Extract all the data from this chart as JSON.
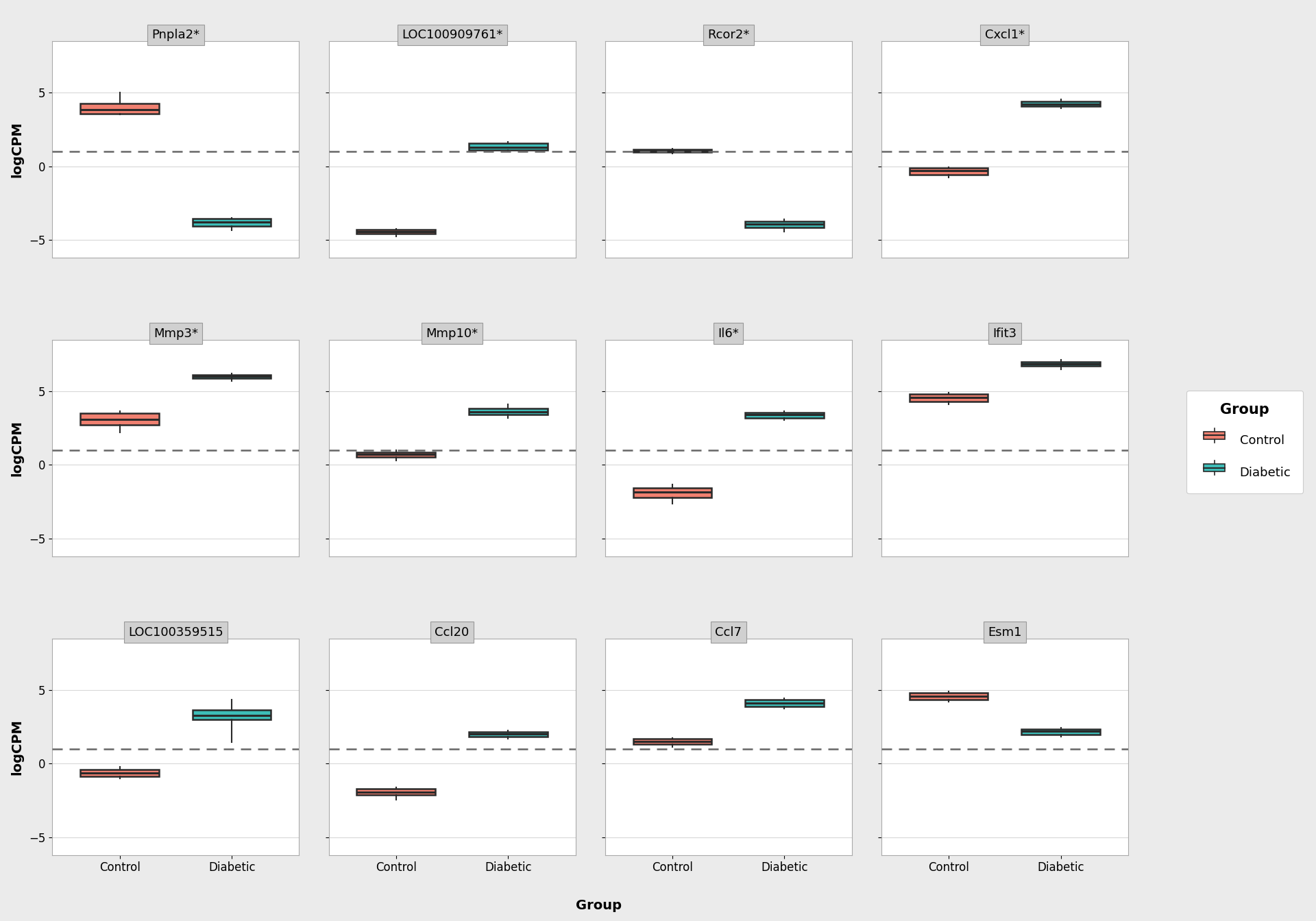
{
  "panels": [
    {
      "title": "Pnpla2*",
      "row": 0,
      "col": 0,
      "control": {
        "q1": 3.55,
        "median": 3.85,
        "q3": 4.25,
        "whislo": 3.5,
        "whishi": 5.0
      },
      "diabetic": {
        "q1": -4.05,
        "median": -3.8,
        "q3": -3.55,
        "whislo": -4.35,
        "whishi": -3.5
      }
    },
    {
      "title": "LOC100909761*",
      "row": 0,
      "col": 1,
      "control": {
        "q1": -4.6,
        "median": -4.45,
        "q3": -4.3,
        "whislo": -4.75,
        "whishi": -4.25
      },
      "diabetic": {
        "q1": 1.1,
        "median": 1.3,
        "q3": 1.55,
        "whislo": 1.05,
        "whishi": 1.65
      }
    },
    {
      "title": "Rcor2*",
      "row": 0,
      "col": 2,
      "control": {
        "q1": 0.95,
        "median": 1.05,
        "q3": 1.15,
        "whislo": 0.88,
        "whishi": 1.2
      },
      "diabetic": {
        "q1": -4.15,
        "median": -3.95,
        "q3": -3.75,
        "whislo": -4.45,
        "whishi": -3.6
      }
    },
    {
      "title": "Cxcl1*",
      "row": 0,
      "col": 3,
      "control": {
        "q1": -0.6,
        "median": -0.32,
        "q3": -0.12,
        "whislo": -0.78,
        "whishi": -0.05
      },
      "diabetic": {
        "q1": 4.05,
        "median": 4.22,
        "q3": 4.38,
        "whislo": 3.95,
        "whishi": 4.52
      }
    },
    {
      "title": "Mmp3*",
      "row": 1,
      "col": 0,
      "control": {
        "q1": 2.7,
        "median": 3.1,
        "q3": 3.5,
        "whislo": 2.2,
        "whishi": 3.65
      },
      "diabetic": {
        "q1": 5.88,
        "median": 6.0,
        "q3": 6.12,
        "whislo": 5.7,
        "whishi": 6.2
      }
    },
    {
      "title": "Mmp10*",
      "row": 1,
      "col": 1,
      "control": {
        "q1": 0.55,
        "median": 0.72,
        "q3": 0.88,
        "whislo": 0.3,
        "whishi": 0.98
      },
      "diabetic": {
        "q1": 3.4,
        "median": 3.6,
        "q3": 3.85,
        "whislo": 3.2,
        "whishi": 4.1
      }
    },
    {
      "title": "Il6*",
      "row": 1,
      "col": 2,
      "control": {
        "q1": -2.2,
        "median": -1.85,
        "q3": -1.55,
        "whislo": -2.65,
        "whishi": -1.35
      },
      "diabetic": {
        "q1": 3.2,
        "median": 3.4,
        "q3": 3.55,
        "whislo": 3.05,
        "whishi": 3.65
      }
    },
    {
      "title": "Ifit3",
      "row": 1,
      "col": 3,
      "control": {
        "q1": 4.3,
        "median": 4.6,
        "q3": 4.82,
        "whislo": 4.1,
        "whishi": 4.92
      },
      "diabetic": {
        "q1": 6.7,
        "median": 6.85,
        "q3": 7.0,
        "whislo": 6.5,
        "whishi": 7.12
      }
    },
    {
      "title": "LOC100359515",
      "row": 2,
      "col": 0,
      "control": {
        "q1": -0.88,
        "median": -0.62,
        "q3": -0.42,
        "whislo": -1.02,
        "whishi": -0.22
      },
      "diabetic": {
        "q1": 2.98,
        "median": 3.28,
        "q3": 3.65,
        "whislo": 1.45,
        "whishi": 4.32
      }
    },
    {
      "title": "Ccl20",
      "row": 2,
      "col": 1,
      "control": {
        "q1": -2.15,
        "median": -1.92,
        "q3": -1.72,
        "whislo": -2.45,
        "whishi": -1.62
      },
      "diabetic": {
        "q1": 1.82,
        "median": 2.0,
        "q3": 2.16,
        "whislo": 1.68,
        "whishi": 2.26
      }
    },
    {
      "title": "Ccl7",
      "row": 2,
      "col": 2,
      "control": {
        "q1": 1.3,
        "median": 1.5,
        "q3": 1.68,
        "whislo": 1.12,
        "whishi": 1.72
      },
      "diabetic": {
        "q1": 3.88,
        "median": 4.1,
        "q3": 4.32,
        "whislo": 3.72,
        "whishi": 4.42
      }
    },
    {
      "title": "Esm1",
      "row": 2,
      "col": 3,
      "control": {
        "q1": 4.32,
        "median": 4.58,
        "q3": 4.82,
        "whislo": 4.18,
        "whishi": 4.92
      },
      "diabetic": {
        "q1": 1.98,
        "median": 2.18,
        "q3": 2.35,
        "whislo": 1.82,
        "whishi": 2.45
      }
    }
  ],
  "control_color": "#F08070",
  "diabetic_color": "#3DBDB8",
  "box_edge_color": "#2a2a2a",
  "median_color": "#2a2a2a",
  "dashed_line_y": 1.0,
  "ylim": [
    -6.2,
    8.5
  ],
  "yticks": [
    -5,
    0,
    5
  ],
  "ylabel": "logCPM",
  "xlabel": "Group",
  "xtick_labels": [
    "Control",
    "Diabetic"
  ],
  "background_color": "#EBEBEB",
  "panel_bg_color": "#FFFFFF",
  "grid_color": "#D8D8D8",
  "title_bg_color": "#D0D0D0",
  "title_fontsize": 13,
  "legend_title": "Group",
  "legend_labels": [
    "Control",
    "Diabetic"
  ],
  "nrows": 3,
  "ncols": 4,
  "box_width": 0.7,
  "ylabel_fontsize": 14,
  "xlabel_fontsize": 14,
  "tick_fontsize": 12
}
